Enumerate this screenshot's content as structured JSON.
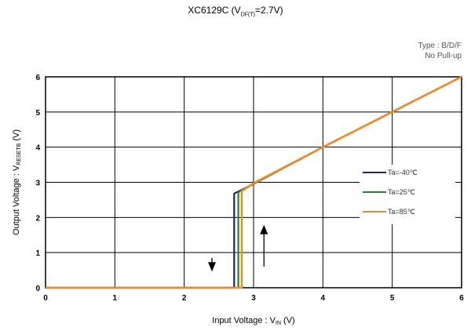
{
  "title_main": "XC6129C (V",
  "title_sub": "DF(T)",
  "title_end": "=2.7V)",
  "type_line1": "Type : B/D/F",
  "type_line2": "No Pull-up",
  "colors": {
    "ta_minus40": "#1a237e",
    "ta_25": "#2e7d32",
    "ta_85": "#f08a24",
    "vertical_85": "#c8a02a",
    "grid": "#000000"
  },
  "chart_data": {
    "type": "line",
    "xlabel_main": "Input Voltage : V",
    "xlabel_sub": "IN",
    "xlabel_end": " (V)",
    "ylabel_main": "Output Voltage : V",
    "ylabel_sub": "RESETB",
    "ylabel_end": " (V)",
    "xlim": [
      0,
      6
    ],
    "ylim": [
      0,
      6
    ],
    "x_ticks": [
      "0",
      "1",
      "2",
      "3",
      "4",
      "5",
      "6"
    ],
    "y_ticks": [
      "0",
      "1",
      "2",
      "3",
      "4",
      "5",
      "6"
    ],
    "grid": true,
    "legend_position": "right",
    "series": [
      {
        "name": "Ta=-40℃",
        "points": [
          [
            0,
            0
          ],
          [
            2.72,
            0
          ],
          [
            2.72,
            2.68
          ],
          [
            3.0,
            2.95
          ],
          [
            4.0,
            4.0
          ],
          [
            5.0,
            5.0
          ],
          [
            6.0,
            6.0
          ]
        ]
      },
      {
        "name": "Ta=25℃",
        "points": [
          [
            0,
            0
          ],
          [
            2.78,
            0
          ],
          [
            2.78,
            2.72
          ],
          [
            3.0,
            2.95
          ],
          [
            4.0,
            4.0
          ],
          [
            5.0,
            5.0
          ],
          [
            6.0,
            6.0
          ]
        ]
      },
      {
        "name": "Ta=85℃",
        "points": [
          [
            0,
            0
          ],
          [
            2.83,
            0
          ],
          [
            2.83,
            2.75
          ],
          [
            3.0,
            2.97
          ],
          [
            4.0,
            4.0
          ],
          [
            5.0,
            5.0
          ],
          [
            6.0,
            6.0
          ]
        ]
      }
    ],
    "arrows": [
      {
        "direction": "down",
        "x": 2.4,
        "y_from": 0.85,
        "y_to": 0.55
      },
      {
        "direction": "up",
        "x": 3.15,
        "y_from": 0.6,
        "y_to": 1.7
      }
    ]
  }
}
